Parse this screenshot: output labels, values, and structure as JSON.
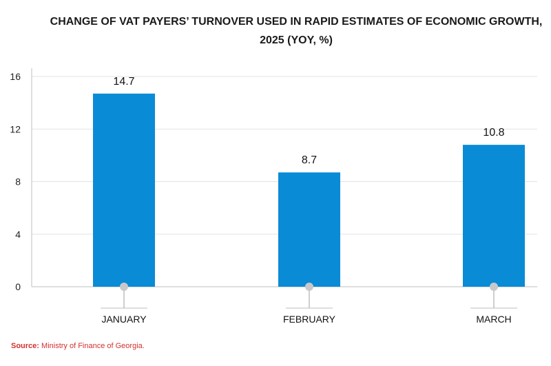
{
  "title": {
    "line1": "CHANGE OF VAT PAYERS’ TURNOVER USED IN RAPID ESTIMATES OF ECONOMIC GROWTH,",
    "line2": "2025 (YOY, %)"
  },
  "source": {
    "label": "Source:",
    "text": "Ministry of Finance of Georgia."
  },
  "colors": {
    "bar": "#0a8bd6",
    "grid": "#e3e3e3",
    "axis": "#bdbdbd",
    "marker": "#c9c9c9",
    "source": "#d0312d"
  },
  "chart_data": {
    "type": "bar",
    "categories": [
      "JANUARY",
      "FEBRUARY",
      "MARCH"
    ],
    "series": [
      {
        "values": [
          14.7,
          8.7,
          10.8
        ]
      }
    ],
    "data_labels": [
      "14.7",
      "8.7",
      "10.8"
    ],
    "yticks": [
      "0",
      "4",
      "8",
      "12",
      "16"
    ],
    "ylim": [
      0,
      16
    ],
    "grid": true,
    "legend": "none"
  }
}
